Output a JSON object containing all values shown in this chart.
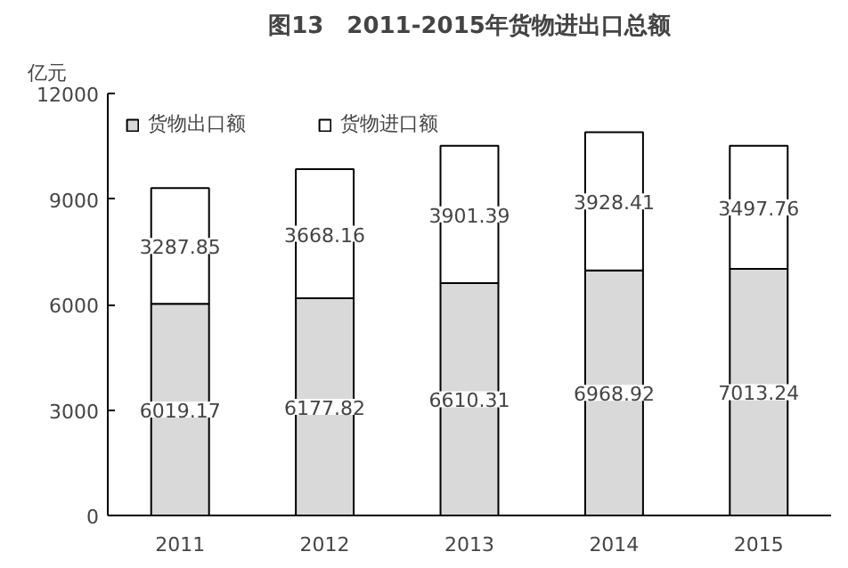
{
  "chart_data": {
    "type": "bar",
    "title": "图13　2011-2015年货物进出口总额",
    "ylabel": "亿元",
    "categories": [
      "2011",
      "2012",
      "2013",
      "2014",
      "2015"
    ],
    "stacked": true,
    "series": [
      {
        "name": "货物出口额",
        "color": "#d9d9d9",
        "values": [
          6019.17,
          6177.82,
          6610.31,
          6968.92,
          7013.24
        ]
      },
      {
        "name": "货物进口额",
        "color": "#ffffff",
        "values": [
          3287.85,
          3668.16,
          3901.39,
          3928.41,
          3497.76
        ]
      }
    ],
    "ylim": [
      0,
      12000
    ],
    "yticks": [
      0,
      3000,
      6000,
      9000,
      12000
    ],
    "grid": false,
    "legend": "top left",
    "data_labels": true
  }
}
